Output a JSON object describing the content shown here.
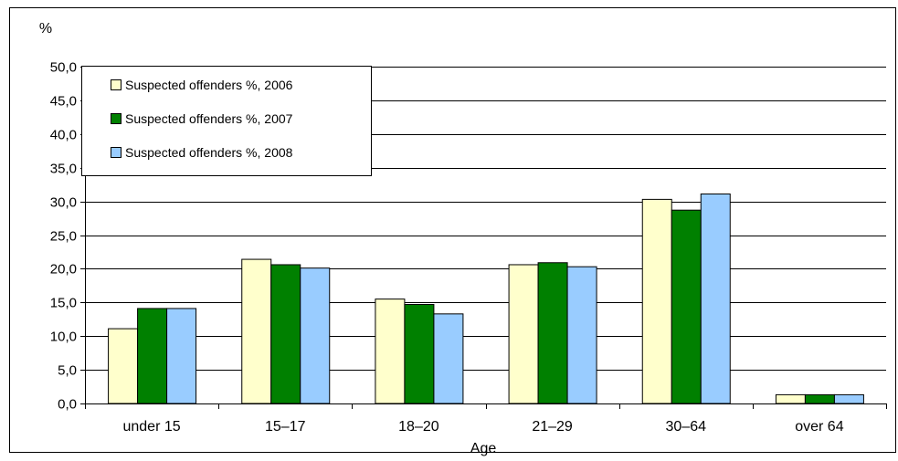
{
  "chart_data": {
    "type": "bar",
    "ylabel": "%",
    "xlabel": "Age",
    "categories": [
      "under 15",
      "15–17",
      "18–20",
      "21–29",
      "30–64",
      "over 64"
    ],
    "series": [
      {
        "name": "Suspected offenders %, 2006",
        "color": "#ffffcc",
        "values": [
          11.1,
          21.4,
          15.5,
          20.6,
          30.3,
          1.3
        ]
      },
      {
        "name": "Suspected offenders %, 2007",
        "color": "#008000",
        "values": [
          14.1,
          20.6,
          14.7,
          20.9,
          28.7,
          1.3
        ]
      },
      {
        "name": "Suspected offenders %, 2008",
        "color": "#99ccff",
        "values": [
          14.1,
          20.1,
          13.3,
          20.3,
          31.1,
          1.3
        ]
      }
    ],
    "ylim": [
      0,
      50
    ],
    "yticks": [
      "0,0",
      "5,0",
      "10,0",
      "15,0",
      "20,0",
      "25,0",
      "30,0",
      "35,0",
      "40,0",
      "45,0",
      "50,0"
    ],
    "grid": true,
    "legend_position": "top-left"
  }
}
